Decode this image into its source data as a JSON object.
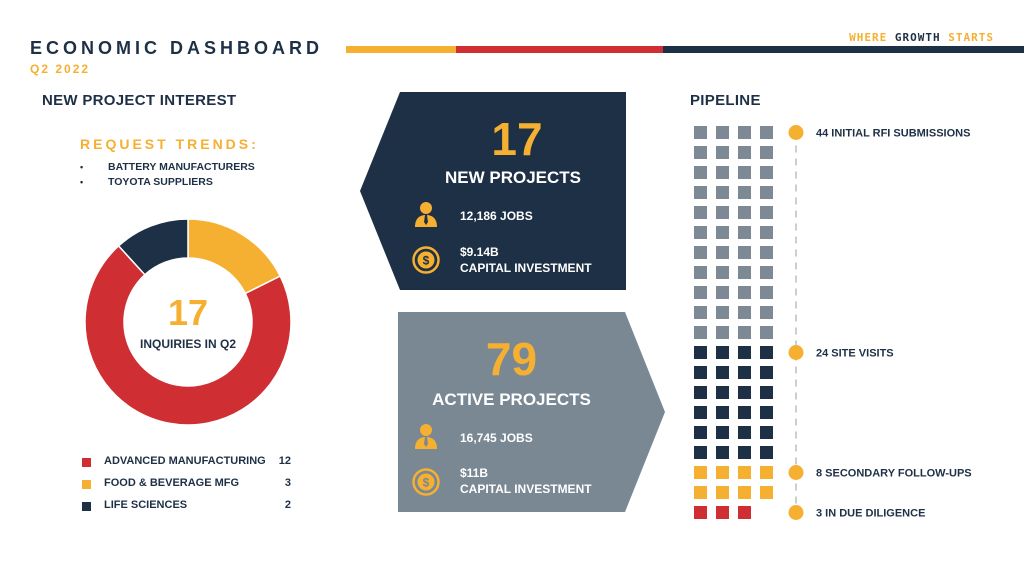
{
  "header": {
    "title": "ECONOMIC DASHBOARD",
    "subtitle": "Q2 2022",
    "tagline_1": "WHERE",
    "tagline_2": "GROWTH",
    "tagline_3": "STARTS"
  },
  "colors": {
    "navy": "#1e3045",
    "gold": "#f5b031",
    "red": "#cf2e33",
    "slate": "#7a8893",
    "gray_square": "#7d8a96"
  },
  "interest": {
    "heading": "NEW PROJECT INTEREST",
    "trends_heading": "REQUEST TRENDS:",
    "trends": [
      "BATTERY MANUFACTURERS",
      "TOYOTA SUPPLIERS"
    ],
    "total": "17",
    "total_caption": "INQUIRIES IN Q2"
  },
  "new_projects": {
    "count": "17",
    "label": "NEW PROJECTS",
    "jobs": "12,186 JOBS",
    "investment_amount": "$9.14B",
    "investment_label": "CAPITAL INVESTMENT",
    "jobs_icon": "person-icon",
    "investment_icon": "dollar-coin-icon"
  },
  "active_projects": {
    "count": "79",
    "label": "ACTIVE PROJECTS",
    "jobs": "16,745 JOBS",
    "investment_amount": "$11B",
    "investment_label": "CAPITAL INVESTMENT",
    "jobs_icon": "person-icon",
    "investment_icon": "dollar-coin-icon"
  },
  "pipeline": {
    "heading": "PIPELINE",
    "stages": [
      {
        "label": "44 INITIAL RFI SUBMISSIONS",
        "value": 44,
        "color": "#7d8a96"
      },
      {
        "label": "24 SITE VISITS",
        "value": 24,
        "color": "#1e3045"
      },
      {
        "label": "8 SECONDARY FOLLOW-UPS",
        "value": 8,
        "color": "#f5b031"
      },
      {
        "label": "3 IN DUE DILIGENCE",
        "value": 3,
        "color": "#cf2e33"
      }
    ]
  },
  "chart_data": [
    {
      "type": "pie",
      "categories": [
        "ADVANCED MANUFACTURING",
        "FOOD & BEVERAGE MFG",
        "LIFE SCIENCES"
      ],
      "values": [
        12,
        3,
        2
      ],
      "colors": [
        "#cf2e33",
        "#f5b031",
        "#1e3045"
      ],
      "legend": "bottom"
    }
  ]
}
